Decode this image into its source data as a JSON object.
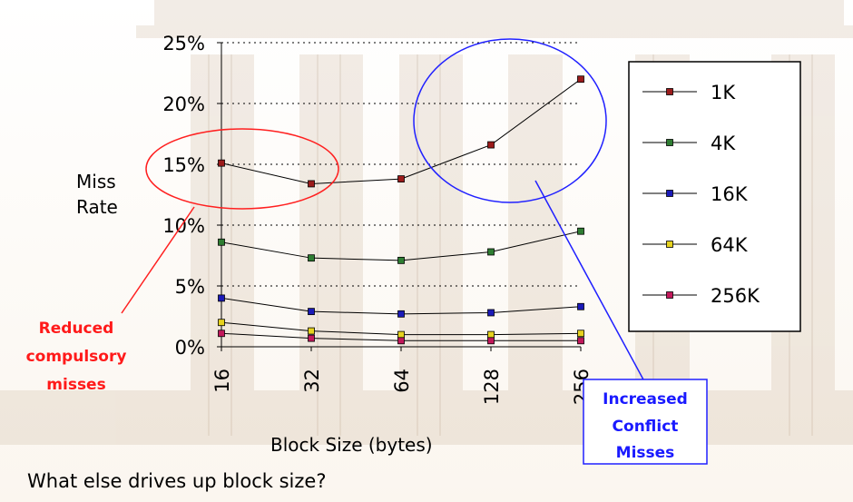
{
  "chart_data": {
    "type": "line",
    "categories": [
      "16",
      "32",
      "64",
      "128",
      "256"
    ],
    "series": [
      {
        "name": "1K",
        "color": "#9b1b1b",
        "values": [
          15.1,
          13.4,
          13.8,
          16.6,
          22.0
        ]
      },
      {
        "name": "4K",
        "color": "#2e7d32",
        "values": [
          8.6,
          7.3,
          7.1,
          7.8,
          9.5
        ]
      },
      {
        "name": "16K",
        "color": "#1a1ab8",
        "values": [
          4.0,
          2.9,
          2.7,
          2.8,
          3.3
        ]
      },
      {
        "name": "64K",
        "color": "#e6d21e",
        "values": [
          2.0,
          1.3,
          1.0,
          1.0,
          1.1
        ]
      },
      {
        "name": "256K",
        "color": "#c2185b",
        "values": [
          1.1,
          0.7,
          0.5,
          0.5,
          0.5
        ]
      }
    ],
    "yticks": [
      "0%",
      "5%",
      "10%",
      "15%",
      "20%",
      "25%"
    ],
    "ylim": [
      0,
      25
    ],
    "ylabel_line1": "Miss",
    "ylabel_line2": "Rate",
    "xlabel": "Block Size (bytes)",
    "grid": "horizontal dotted",
    "legend_position": "right"
  },
  "annotations": {
    "reduced_line1": "Reduced",
    "reduced_line2": "compulsory",
    "reduced_line3": "misses",
    "increased_line1": "Increased",
    "increased_line2": "Conflict",
    "increased_line3": "Misses"
  },
  "question": "What else drives up block size?"
}
